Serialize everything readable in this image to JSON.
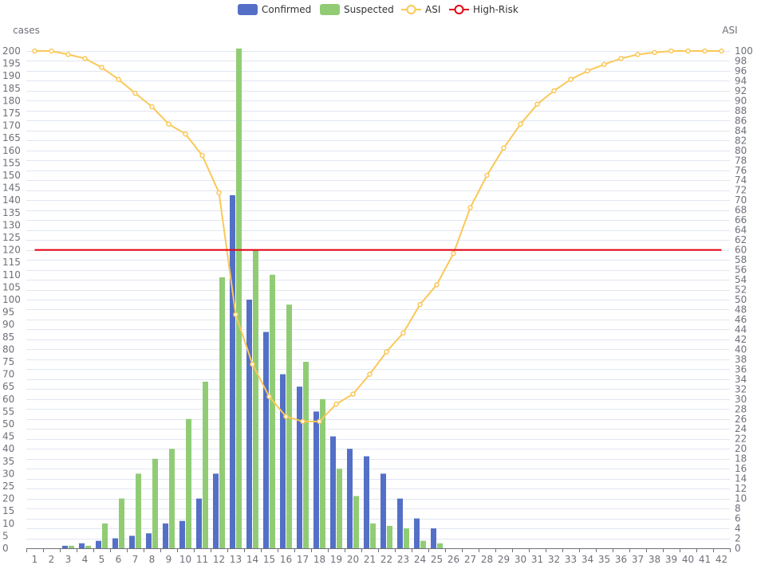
{
  "chart_data": {
    "type": "bar",
    "categories": [
      "1",
      "2",
      "3",
      "4",
      "5",
      "6",
      "7",
      "8",
      "9",
      "10",
      "11",
      "12",
      "13",
      "14",
      "15",
      "16",
      "17",
      "18",
      "19",
      "20",
      "21",
      "22",
      "23",
      "24",
      "25",
      "26",
      "27",
      "28",
      "29",
      "30",
      "31",
      "32",
      "33",
      "34",
      "35",
      "36",
      "37",
      "38",
      "39",
      "40",
      "41",
      "42"
    ],
    "ylabel_left": "cases",
    "ylabel_right": "ASI",
    "ylim_left": [
      0,
      200
    ],
    "ylim_right": [
      0,
      100
    ],
    "y_left_ticks": [
      0,
      5,
      10,
      15,
      20,
      25,
      30,
      35,
      40,
      45,
      50,
      55,
      60,
      65,
      70,
      75,
      80,
      85,
      90,
      95,
      100,
      105,
      110,
      115,
      120,
      125,
      130,
      135,
      140,
      145,
      150,
      155,
      160,
      165,
      170,
      175,
      180,
      185,
      190,
      195,
      200
    ],
    "y_right_ticks": [
      0,
      2,
      4,
      6,
      8,
      10,
      12,
      14,
      16,
      18,
      20,
      22,
      24,
      26,
      28,
      30,
      32,
      34,
      36,
      38,
      40,
      42,
      44,
      46,
      48,
      50,
      52,
      54,
      56,
      58,
      60,
      62,
      64,
      66,
      68,
      70,
      72,
      74,
      76,
      78,
      80,
      82,
      84,
      86,
      88,
      90,
      92,
      94,
      96,
      98,
      100
    ],
    "grid": true,
    "legend_position": "top-center",
    "series": [
      {
        "name": "Confirmed",
        "type": "bar",
        "color": "#5470c6",
        "axis": "left",
        "values": [
          0,
          0,
          1,
          2,
          3,
          4,
          5,
          6,
          10,
          11,
          20,
          30,
          142,
          100,
          87,
          70,
          65,
          55,
          45,
          40,
          37,
          30,
          20,
          12,
          8,
          0,
          0,
          0,
          0,
          0,
          0,
          0,
          0,
          0,
          0,
          0,
          0,
          0,
          0,
          0,
          0,
          0
        ]
      },
      {
        "name": "Suspected",
        "type": "bar",
        "color": "#91cc75",
        "axis": "left",
        "values": [
          0,
          0,
          1,
          1,
          10,
          20,
          30,
          36,
          40,
          52,
          67,
          109,
          201,
          120,
          110,
          98,
          75,
          60,
          32,
          21,
          10,
          9,
          8,
          3,
          2,
          0,
          0,
          0,
          0,
          0,
          0,
          0,
          0,
          0,
          0,
          0,
          0,
          0,
          0,
          0,
          0,
          0
        ]
      },
      {
        "name": "ASI",
        "type": "line",
        "color": "#fac858",
        "axis": "right",
        "values": [
          100,
          100,
          99.3,
          98.5,
          96.7,
          94.3,
          91.5,
          88.8,
          85.3,
          83.3,
          79,
          71.5,
          47,
          37,
          30.5,
          26.5,
          25.5,
          25.5,
          29,
          31,
          35,
          39.5,
          43.3,
          49,
          53,
          59.3,
          68.5,
          75,
          80.5,
          85.3,
          89.3,
          92,
          94.3,
          96,
          97.3,
          98.5,
          99.3,
          99.7,
          100,
          100,
          100,
          100
        ]
      },
      {
        "name": "High-Risk",
        "type": "line",
        "color": "#e60012",
        "axis": "right",
        "values": [
          60,
          60,
          60,
          60,
          60,
          60,
          60,
          60,
          60,
          60,
          60,
          60,
          60,
          60,
          60,
          60,
          60,
          60,
          60,
          60,
          60,
          60,
          60,
          60,
          60,
          60,
          60,
          60,
          60,
          60,
          60,
          60,
          60,
          60,
          60,
          60,
          60,
          60,
          60,
          60,
          60,
          60
        ]
      }
    ]
  }
}
